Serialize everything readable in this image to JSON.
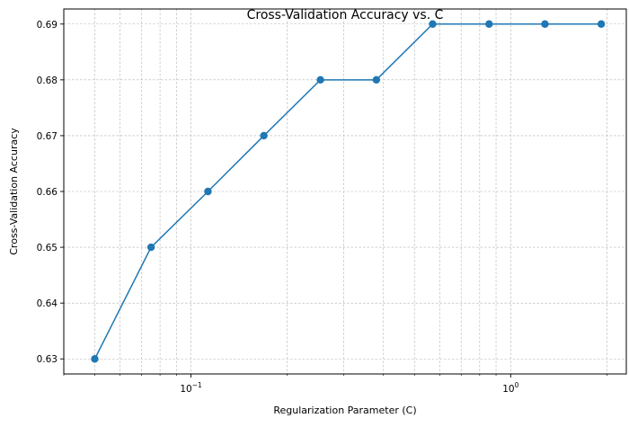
{
  "chart_data": {
    "type": "line",
    "title": "Cross-Validation Accuracy vs. C",
    "xlabel": "Regularization Parameter (C)",
    "ylabel": "Cross-Validation Accuracy",
    "xscale": "log",
    "xlim": [
      0.04,
      2.3
    ],
    "ylim": [
      0.6273,
      0.6927
    ],
    "grid": true,
    "x_ticks": [
      {
        "value": 0.1,
        "base": "10",
        "exp": "−1"
      },
      {
        "value": 1,
        "base": "10",
        "exp": "0"
      }
    ],
    "y_ticks": [
      {
        "value": 0.63,
        "label": "0.63"
      },
      {
        "value": 0.64,
        "label": "0.64"
      },
      {
        "value": 0.65,
        "label": "0.65"
      },
      {
        "value": 0.66,
        "label": "0.66"
      },
      {
        "value": 0.67,
        "label": "0.67"
      },
      {
        "value": 0.68,
        "label": "0.68"
      },
      {
        "value": 0.69,
        "label": "0.69"
      }
    ],
    "series": [
      {
        "color": "#1f77b4",
        "marker": "circle",
        "x": [
          0.05,
          0.075,
          0.113,
          0.169,
          0.254,
          0.38,
          0.57,
          0.856,
          1.28,
          1.92
        ],
        "y": [
          0.63,
          0.65,
          0.66,
          0.67,
          0.68,
          0.68,
          0.69,
          0.69,
          0.69,
          0.69
        ]
      }
    ]
  }
}
